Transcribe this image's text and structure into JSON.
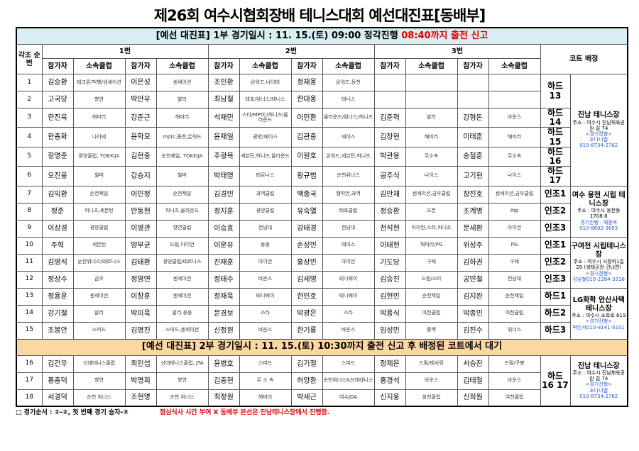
{
  "title": "제26회 여수시협회장배 테니스대회 예선대진표[동배부]",
  "headers": {
    "no": "각조 순번",
    "groups": [
      "1번",
      "2번",
      "3번"
    ],
    "court": "코트 배정",
    "player": "참가자",
    "club": "소속클럽"
  },
  "sessions": [
    {
      "text": "[예선 대진표] 1부 경기일시 : 11. 15.(토) 09:00 정각진행",
      "highlight": "08:40까지 출전 신고",
      "blocks": [
        {
          "venue": {
            "name": "진남 테니스장",
            "address": "주소 : 여수시 진남체육공원 길 74",
            "note": "<경기진행>",
            "contact": [
              "조다니엘",
              "010-8734-2762"
            ]
          },
          "groups": [
            {
              "court": "하드 13",
              "rows": [
                [
                  "1",
                  "김승환",
                  "테크론/빅뱅/센세이션",
                  "이은성",
                  "센세이션",
                  "조인환",
                  "온워드,나이테",
                  "정재웅",
                  "온워드,동천"
                ],
                [
                  "2",
                  "고국당",
                  "향연",
                  "박만우",
                  "발리",
                  "최남철",
                  "테호/위너스/테니스",
                  "한대웅",
                  "테니스"
                ]
              ]
            },
            {
              "court": "하드 14",
              "rows": [
                [
                  "3",
                  "한진욱",
                  "해미리",
                  "강준근",
                  "해미리",
                  "석재민",
                  "스타/MPTC/허니즈/올라운드",
                  "이민환",
                  "올라운드/위너스/허니즈",
                  "김준혁",
                  "발리",
                  "강형돈",
                  "바운스"
                ]
              ]
            },
            {
              "court": "하드 15",
              "rows": [
                [
                  "4",
                  "한종화",
                  "나이테",
                  "윤학모",
                  "mptc,동천,온워드",
                  "윤재일",
                  "광양/에이스",
                  "김관중",
                  "에이스",
                  "김창현",
                  "해미리",
                  "이태훈",
                  "해미리"
                ]
              ]
            },
            {
              "court": "하드 16",
              "rows": [
                [
                  "5",
                  "장명준",
                  "광양클럽, TOKKIJA",
                  "김현중",
                  "순천제일, TOKKIJA",
                  "주광목",
                  "세븐틴,허니즈,올라운드",
                  "이원호",
                  "온워드,세븐틴,허니즈",
                  "박관용",
                  "무소속",
                  "송철훈",
                  "무소속"
                ]
              ]
            },
            {
              "court": "하드 17",
              "rows": [
                [
                  "6",
                  "오진웅",
                  "철마",
                  "강승지",
                  "철마",
                  "박태영",
                  "테르니스",
                  "황규범",
                  "순천위너스",
                  "공주식",
                  "나이스",
                  "고기현",
                  "나이스"
                ]
              ]
            }
          ]
        },
        {
          "venue": {
            "name": "여수 웅천 시립 테니스장",
            "address": "주소 : 여수시 웅천동1708-8",
            "note": "경기진행 : 채종옥",
            "contact": [
              "010-8602-3693"
            ]
          },
          "groups": [
            {
              "court": "인조1",
              "rows": [
                [
                  "7",
                  "김익환",
                  "순천제일",
                  "이민정",
                  "순천제일",
                  "김경빈",
                  "과역클럽",
                  "백종국",
                  "챔피언,과역",
                  "김만재",
                  "센세이션,금우클럽",
                  "장진호",
                  "센세이션,금우클럽"
                ]
              ]
            },
            {
              "court": "인조2",
              "rows": [
                [
                  "8",
                  "정준",
                  "허니즈,세븐틴",
                  "안동현",
                  "허니즈,올라운드",
                  "정지훈",
                  "광양클럽",
                  "유숙열",
                  "태호클럽",
                  "정승환",
                  "오픈",
                  "조계명",
                  "Atp"
                ]
              ]
            },
            {
              "court": "인조3",
              "rows": [
                [
                  "9",
                  "이상경",
                  "광양클럽",
                  "이병관",
                  "향연클럽",
                  "이승효",
                  "전남대",
                  "강태경",
                  "전남대",
                  "천석현",
                  "아이언,스타,허니즈",
                  "문세환",
                  "아이언"
                ]
              ]
            }
          ]
        },
        {
          "venue": {
            "name": "구여천 시립테니스장",
            "address": "주소 : 여수시 시청하1길 29 (생태공원 건너편)",
            "note": "<경기진행>",
            "contact": [
              "김남철010-2394-3316"
            ]
          },
          "groups": [
            {
              "court": "인조1",
              "rows": [
                [
                  "10",
                  "주혁",
                  "세븐틴",
                  "양부균",
                  "드림,아이언",
                  "이운유",
                  "웅웅",
                  "손성민",
                  "에이스",
                  "이태현",
                  "해미리/PG",
                  "위성주",
                  "PG"
                ]
              ]
            },
            {
              "court": "인조2",
              "rows": [
                [
                  "11",
                  "김병석",
                  "순천위너스/테르니스",
                  "김태환",
                  "광양클럽/테르니스",
                  "진재훈",
                  "아이언",
                  "홍상민",
                  "아이언",
                  "기도당",
                  "구례",
                  "김하권",
                  "구례"
                ]
              ]
            },
            {
              "court": "인조3",
              "rows": [
                [
                  "12",
                  "정상수",
                  "금우",
                  "정영연",
                  "센세이션",
                  "정태수",
                  "바운스",
                  "김세영",
                  "테니웨이",
                  "김승진",
                  "드림/스타",
                  "공민철",
                  "전남대"
                ]
              ]
            }
          ]
        },
        {
          "venue": {
            "name": "LG화학 안산사택 테니스장",
            "address": "주소 : 여수시 소호로 619",
            "note": "<경기진행>",
            "contact": [
              "박인서010-8141-5331"
            ]
          },
          "groups": [
            {
              "court": "하드1",
              "rows": [
                [
                  "13",
                  "정용운",
                  "센세이션",
                  "이창훈",
                  "센세이션",
                  "정재욱",
                  "테니웨이",
                  "한인호",
                  "테니웨이",
                  "김현민",
                  "순천제일",
                  "김지완",
                  "순천제일"
                ]
              ]
            },
            {
              "court": "하드2",
              "rows": [
                [
                  "14",
                  "강기철",
                  "발리",
                  "박미욱",
                  "발리,웅웅",
                  "문경보",
                  "스타",
                  "박광은",
                  "스타",
                  "박용식",
                  "여천클럽",
                  "박종민",
                  "여천클럽"
                ]
              ]
            },
            {
              "court": "하드3",
              "rows": [
                [
                  "15",
                  "조봉안",
                  "스피드",
                  "김명진",
                  "스피드,센세이션",
                  "신정원",
                  "바운스",
                  "한기룡",
                  "바운스",
                  "임성민",
                  "중백",
                  "김진수",
                  "위너스"
                ]
              ]
            }
          ]
        }
      ]
    },
    {
      "text": "[예선 대진표] 2부 경기일시 : 11. 15.(토) 10:30까지 출전 신고 후 배정된 코트에서 대기",
      "blocks": [
        {
          "venue": {
            "name": "진남 테니스장",
            "address": "주소 : 여수시 진남체육공원 길 74",
            "note": "<경기진행>",
            "contact": [
              "조다니엘",
              "010-8734-2762"
            ]
          },
          "groups": [
            {
              "court": "하드 16 17",
              "rows": [
                [
                  "16",
                  "김건우",
                  "신대테니스클럽",
                  "최인섭",
                  "신대테니스클럽, JTA",
                  "윤병호",
                  "스피드",
                  "김기철",
                  "스피드",
                  "정제은",
                  "드림/테사랑",
                  "서승찬",
                  "드림/구봉"
                ],
                [
                  "17",
                  "홍종덕",
                  "향연",
                  "박명희",
                  "향연",
                  "김충현",
                  "무 소 속",
                  "허양환",
                  "순천위너스&신대테니스",
                  "홍경석",
                  "바운스",
                  "김태철",
                  "바운스"
                ],
                [
                  "18",
                  "서경덕",
                  "순천 위너스",
                  "조현명",
                  "순천 위너스",
                  "최정원",
                  "해미리",
                  "박세근",
                  "여수JOA",
                  "신지웅",
                  "웅천클럽",
                  "신희원",
                  "여천클럽"
                ]
              ]
            }
          ]
        }
      ]
    }
  ],
  "footer": {
    "order": "□ 경기순서 : ①-②, 첫 번째 경기 승자-③",
    "notice": "점심식사 시간 부여 X 동배부 본선은 진남테니스장에서 진행함."
  }
}
